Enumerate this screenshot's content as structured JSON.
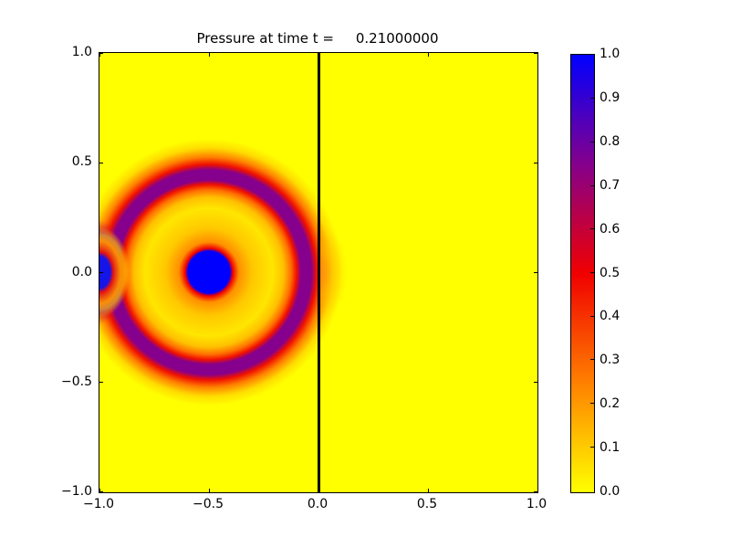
{
  "figure": {
    "background": "#ffffff",
    "title": "Pressure at time t =     0.21000000"
  },
  "plot": {
    "x_tick_labels": [
      "−1.0",
      "−0.5",
      "0.0",
      "0.5",
      "1.0"
    ],
    "y_tick_labels": [
      "1.0",
      "0.5",
      "0.0",
      "−0.5",
      "−1.0"
    ],
    "frame_color": "#000000",
    "field_background_color": "#ffff00",
    "barrier": {
      "x": "0.0",
      "color": "#000000"
    }
  },
  "colorbar": {
    "tick_labels": [
      "1.0",
      "0.9",
      "0.8",
      "0.7",
      "0.6",
      "0.5",
      "0.4",
      "0.3",
      "0.2",
      "0.1",
      "0.0"
    ],
    "colormap": [
      {
        "value": 0.0,
        "color": "#ffff00"
      },
      {
        "value": 0.25,
        "color": "#ff8000"
      },
      {
        "value": 0.5,
        "color": "#f00000"
      },
      {
        "value": 0.75,
        "color": "#85008c"
      },
      {
        "value": 1.0,
        "color": "#0000ff"
      }
    ]
  },
  "chart_data": {
    "type": "heatmap",
    "title": "Pressure at time t =     0.21000000",
    "time": 0.21,
    "xlabel": "",
    "ylabel": "",
    "xlim": [
      -1.0,
      1.0
    ],
    "ylim": [
      -1.0,
      1.0
    ],
    "x_ticks": [
      -1.0,
      -0.5,
      0.0,
      0.5,
      1.0
    ],
    "y_ticks": [
      -1.0,
      -0.5,
      0.0,
      0.5,
      1.0
    ],
    "value_range": [
      0.0,
      1.0
    ],
    "colorbar_ticks": [
      0.0,
      0.1,
      0.2,
      0.3,
      0.4,
      0.5,
      0.6,
      0.7,
      0.8,
      0.9,
      1.0
    ],
    "colormap_stops": [
      {
        "value": 0.0,
        "color": "#ffff00"
      },
      {
        "value": 0.25,
        "color": "#ff8000"
      },
      {
        "value": 0.5,
        "color": "#f00000"
      },
      {
        "value": 0.75,
        "color": "#85008c"
      },
      {
        "value": 1.0,
        "color": "#0000ff"
      }
    ],
    "grid": false,
    "legend_position": "colorbar-right",
    "features": [
      {
        "name": "ambient-field",
        "pressure": 0.0,
        "note": "uniform yellow background on both sides of the barrier"
      },
      {
        "name": "source-spot",
        "center_x": -0.5,
        "center_y": 0.0,
        "radius": 0.1,
        "pressure": 1.0,
        "note": "solid blue disk with thin red rim and orange halo fading outward"
      },
      {
        "name": "expanding-wavefront-ring",
        "center_x": -0.5,
        "center_y": 0.0,
        "inner_radius": 0.4,
        "outer_radius": 0.49,
        "peak_radius": 0.45,
        "peak_pressure": 0.75,
        "note": "purple-cored ring with red edges fading through orange to yellow"
      },
      {
        "name": "wall-reflection",
        "center_x": -1.0,
        "center_y": 0.0,
        "pressure": 1.0,
        "half_height": 0.12,
        "note": "blue high-pressure strip on the left wall flanked by red and purple lobes"
      },
      {
        "name": "vertical-barrier",
        "x": 0.0,
        "from_y": -1.0,
        "to_y": 1.0,
        "color": "#000000"
      },
      {
        "name": "transmitted-pulse",
        "center_x": 0.0,
        "center_y": 0.0,
        "pressure": 0.2,
        "extent_x": 0.12,
        "extent_y": 0.22,
        "note": "faint orange glow leaking to the right of the barrier"
      }
    ]
  }
}
